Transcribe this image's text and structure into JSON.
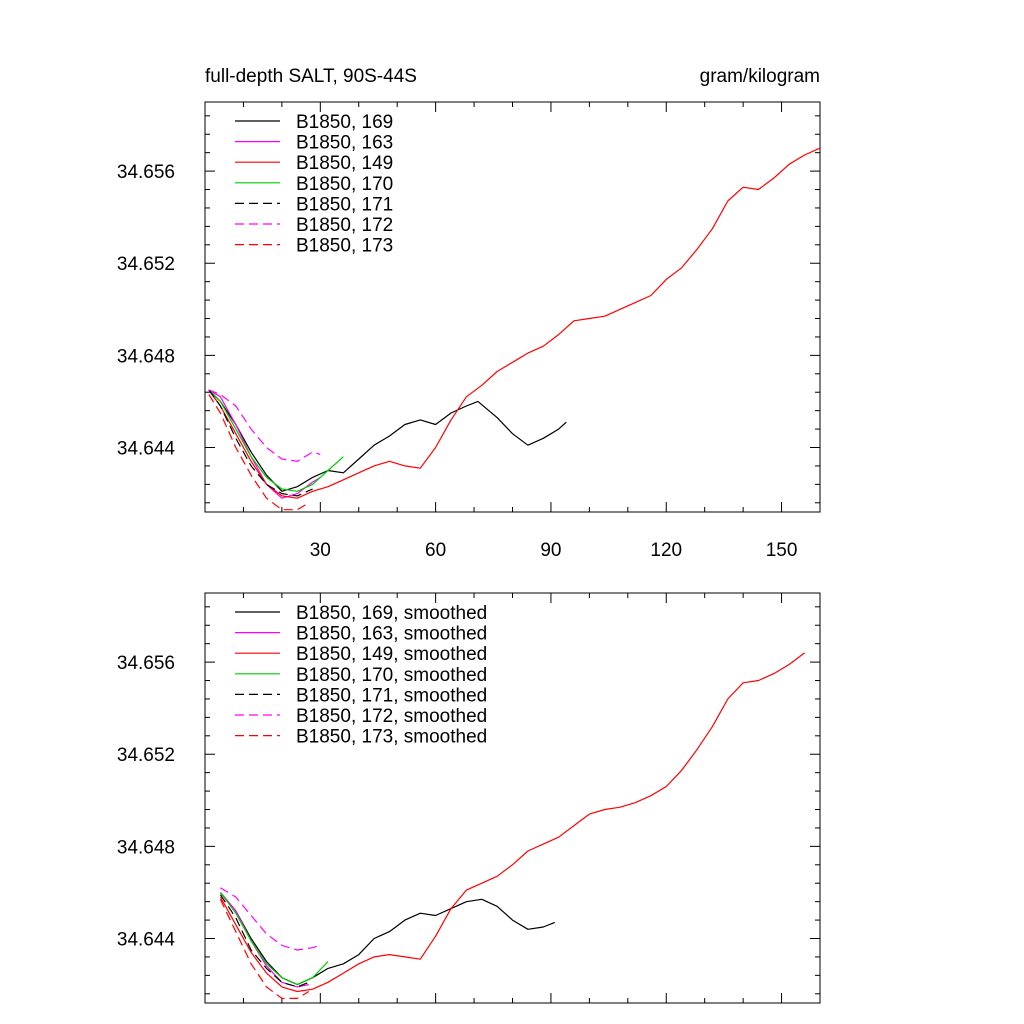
{
  "chart_data": [
    {
      "type": "line",
      "title_left": "full-depth SALT, 90S-44S",
      "title_right": "gram/kilogram",
      "xlim": [
        0,
        160
      ],
      "ylim": [
        34.6412,
        34.659
      ],
      "x_ticks": [
        30,
        60,
        90,
        120,
        150
      ],
      "x_tick_labels": [
        "30",
        "60",
        "90",
        "120",
        "150"
      ],
      "show_x_labels": true,
      "y_ticks": [
        34.644,
        34.648,
        34.652,
        34.656
      ],
      "y_tick_labels": [
        "34.644",
        "34.648",
        "34.652",
        "34.656"
      ],
      "grid": false,
      "legend_position": "top-left",
      "series": [
        {
          "name": "B1850, 169",
          "color": "#000000",
          "dash": "solid",
          "x": [
            1,
            4,
            8,
            12,
            16,
            20,
            24,
            28,
            32,
            36,
            40,
            44,
            48,
            52,
            56,
            60,
            64,
            68,
            71,
            76,
            80,
            84,
            88,
            92,
            94
          ],
          "y": [
            34.6465,
            34.646,
            34.645,
            34.6438,
            34.6428,
            34.6421,
            34.6423,
            34.6427,
            34.643,
            34.6429,
            34.6435,
            34.6441,
            34.6445,
            34.645,
            34.6452,
            34.645,
            34.6455,
            34.6458,
            34.646,
            34.6453,
            34.6446,
            34.6441,
            34.6444,
            34.6448,
            34.6451
          ]
        },
        {
          "name": "B1850, 163",
          "color": "#ff00ff",
          "dash": "solid",
          "x": [
            1,
            4,
            8,
            12,
            16,
            20,
            24,
            28,
            30
          ],
          "y": [
            34.6465,
            34.6462,
            34.645,
            34.6436,
            34.6424,
            34.6418,
            34.642,
            34.6425,
            34.6427
          ]
        },
        {
          "name": "B1850, 149",
          "color": "#ff0000",
          "dash": "solid",
          "x": [
            1,
            4,
            8,
            12,
            16,
            20,
            24,
            28,
            32,
            36,
            40,
            44,
            48,
            52,
            56,
            60,
            64,
            68,
            72,
            76,
            80,
            84,
            88,
            92,
            96,
            100,
            104,
            108,
            112,
            116,
            120,
            124,
            128,
            132,
            136,
            140,
            144,
            148,
            152,
            156,
            160
          ],
          "y": [
            34.6465,
            34.6458,
            34.6446,
            34.6434,
            34.6424,
            34.6419,
            34.6418,
            34.6421,
            34.6423,
            34.6426,
            34.6429,
            34.6432,
            34.6434,
            34.6432,
            34.6431,
            34.644,
            34.6452,
            34.6462,
            34.6467,
            34.6473,
            34.6477,
            34.6481,
            34.6484,
            34.6489,
            34.6495,
            34.6496,
            34.6497,
            34.65,
            34.6503,
            34.6506,
            34.6513,
            34.6518,
            34.6526,
            34.6535,
            34.6547,
            34.6553,
            34.6552,
            34.6557,
            34.6563,
            34.6567,
            34.657
          ]
        },
        {
          "name": "B1850, 170",
          "color": "#00cc00",
          "dash": "solid",
          "x": [
            1,
            4,
            8,
            12,
            16,
            20,
            24,
            28,
            32,
            36
          ],
          "y": [
            34.6465,
            34.646,
            34.6448,
            34.6436,
            34.6427,
            34.6422,
            34.6421,
            34.6424,
            34.643,
            34.6436
          ]
        },
        {
          "name": "B1850, 171",
          "color": "#000000",
          "dash": "dashed",
          "x": [
            1,
            4,
            8,
            12,
            16,
            20,
            24,
            28
          ],
          "y": [
            34.6465,
            34.6458,
            34.6444,
            34.6432,
            34.6424,
            34.642,
            34.6419,
            34.6422
          ]
        },
        {
          "name": "B1850, 172",
          "color": "#ff00ff",
          "dash": "dashed",
          "x": [
            1,
            4,
            8,
            12,
            16,
            20,
            24,
            28,
            30
          ],
          "y": [
            34.6465,
            34.6463,
            34.6458,
            34.6448,
            34.644,
            34.6435,
            34.6434,
            34.6438,
            34.6437
          ]
        },
        {
          "name": "B1850, 173",
          "color": "#ff0000",
          "dash": "dashed",
          "x": [
            1,
            4,
            8,
            12,
            16,
            20,
            24,
            27
          ],
          "y": [
            34.6463,
            34.6455,
            34.644,
            34.6428,
            34.6418,
            34.6413,
            34.6413,
            34.6416
          ]
        }
      ]
    },
    {
      "type": "line",
      "title_left": "",
      "title_right": "",
      "xlim": [
        0,
        160
      ],
      "ylim": [
        34.6412,
        34.659
      ],
      "x_ticks": [
        30,
        60,
        90,
        120,
        150
      ],
      "x_tick_labels": [],
      "show_x_labels": false,
      "y_ticks": [
        34.644,
        34.648,
        34.652,
        34.656
      ],
      "y_tick_labels": [
        "34.644",
        "34.648",
        "34.652",
        "34.656"
      ],
      "grid": false,
      "legend_position": "top-left",
      "series": [
        {
          "name": "B1850, 169, smoothed",
          "color": "#000000",
          "dash": "solid",
          "x": [
            4,
            8,
            12,
            16,
            20,
            24,
            28,
            32,
            36,
            40,
            44,
            48,
            52,
            56,
            60,
            64,
            68,
            72,
            76,
            80,
            84,
            88,
            91
          ],
          "y": [
            34.646,
            34.6452,
            34.644,
            34.643,
            34.6423,
            34.642,
            34.6423,
            34.6427,
            34.6429,
            34.6433,
            34.644,
            34.6443,
            34.6448,
            34.6451,
            34.645,
            34.6453,
            34.6456,
            34.6457,
            34.6454,
            34.6448,
            34.6444,
            34.6445,
            34.6447
          ]
        },
        {
          "name": "B1850, 163, smoothed",
          "color": "#ff00ff",
          "dash": "solid",
          "x": [
            4,
            8,
            12,
            16,
            20,
            24,
            27
          ],
          "y": [
            34.646,
            34.6452,
            34.6439,
            34.6428,
            34.6421,
            34.6419,
            34.642
          ]
        },
        {
          "name": "B1850, 149, smoothed",
          "color": "#ff0000",
          "dash": "solid",
          "x": [
            4,
            8,
            12,
            16,
            20,
            24,
            28,
            32,
            36,
            40,
            44,
            48,
            52,
            56,
            60,
            64,
            68,
            72,
            76,
            80,
            84,
            88,
            92,
            96,
            100,
            104,
            108,
            112,
            116,
            120,
            124,
            128,
            132,
            136,
            140,
            144,
            148,
            152,
            156
          ],
          "y": [
            34.6458,
            34.6446,
            34.6434,
            34.6425,
            34.6419,
            34.6417,
            34.6418,
            34.6421,
            34.6425,
            34.6429,
            34.6432,
            34.6433,
            34.6432,
            34.6431,
            34.6441,
            34.6453,
            34.6461,
            34.6464,
            34.6467,
            34.6472,
            34.6478,
            34.6481,
            34.6484,
            34.6489,
            34.6494,
            34.6496,
            34.6497,
            34.6499,
            34.6502,
            34.6506,
            34.6513,
            34.6522,
            34.6532,
            34.6544,
            34.6551,
            34.6552,
            34.6555,
            34.6559,
            34.6564
          ]
        },
        {
          "name": "B1850, 170, smoothed",
          "color": "#00cc00",
          "dash": "solid",
          "x": [
            4,
            8,
            12,
            16,
            20,
            24,
            28,
            32
          ],
          "y": [
            34.646,
            34.6451,
            34.6439,
            34.6429,
            34.6423,
            34.642,
            34.6423,
            34.643
          ]
        },
        {
          "name": "B1850, 171, smoothed",
          "color": "#000000",
          "dash": "dashed",
          "x": [
            4,
            8,
            12,
            16,
            20,
            24,
            27
          ],
          "y": [
            34.6459,
            34.6449,
            34.6435,
            34.6427,
            34.6421,
            34.6419,
            34.6421
          ]
        },
        {
          "name": "B1850, 172, smoothed",
          "color": "#ff00ff",
          "dash": "dashed",
          "x": [
            4,
            8,
            12,
            16,
            20,
            24,
            28,
            30
          ],
          "y": [
            34.6462,
            34.6458,
            34.645,
            34.6442,
            34.6437,
            34.6435,
            34.6436,
            34.6437
          ]
        },
        {
          "name": "B1850, 173, smoothed",
          "color": "#ff0000",
          "dash": "dashed",
          "x": [
            4,
            8,
            12,
            16,
            20,
            24,
            27
          ],
          "y": [
            34.6457,
            34.6443,
            34.6429,
            34.6419,
            34.6414,
            34.6414,
            34.6417
          ]
        }
      ]
    }
  ]
}
